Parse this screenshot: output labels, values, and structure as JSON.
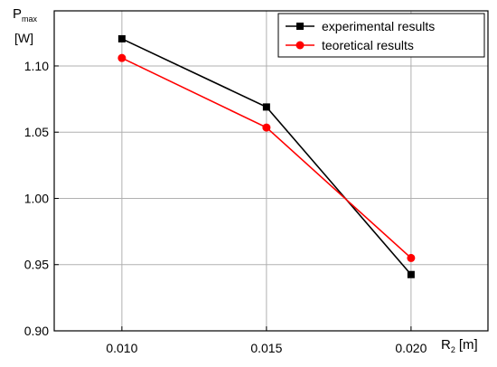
{
  "chart_data": {
    "type": "line",
    "y_label": {
      "main": "P",
      "sub": "max",
      "unit": "[W]"
    },
    "x_label": {
      "main": "R",
      "sub": "2",
      "unit": "[m]"
    },
    "x": [
      0.01,
      0.015,
      0.02
    ],
    "series": [
      {
        "name": "experimental results",
        "color": "#000000",
        "marker": "square",
        "values": [
          1.1205,
          1.069,
          0.9425
        ]
      },
      {
        "name": "teoretical results",
        "color": "#ff0000",
        "marker": "circle",
        "values": [
          1.106,
          1.0535,
          0.955
        ]
      }
    ],
    "xlim": [
      0.00766,
      0.02266
    ],
    "xticks": [
      {
        "value": 0.01,
        "label": "0.010"
      },
      {
        "value": 0.015,
        "label": "0.015"
      },
      {
        "value": 0.02,
        "label": "0.020"
      }
    ],
    "ylim": [
      0.9,
      1.1416
    ],
    "yticks": [
      {
        "value": 0.9,
        "label": "0.90"
      },
      0.95,
      {
        "value": 1.0,
        "label": "1.00"
      },
      1.05,
      {
        "value": 1.1,
        "label": "1.10"
      }
    ],
    "grid": true,
    "legend": "top-right"
  }
}
